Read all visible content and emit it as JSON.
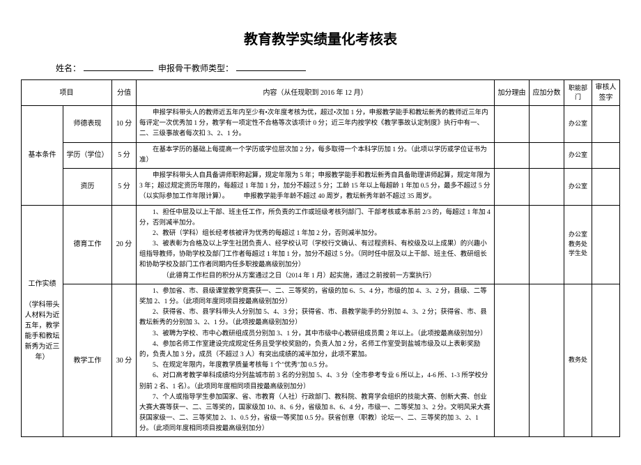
{
  "title": "教育教学实绩量化考核表",
  "header": {
    "name_label": "姓名：",
    "type_label": "申报骨干教师类型："
  },
  "columns": {
    "project": "项目",
    "score": "分值",
    "content": "内容（从任现职到 2016 年 12 月）",
    "reason": "加分理由",
    "add_score": "应加分数",
    "dept": "职能部门",
    "sign": "审核人签字"
  },
  "section1": {
    "name": "基本条件",
    "rows": [
      {
        "item": "师德表现",
        "score": "10 分",
        "content": "　　申报学科带头人的教师近五年内至少有•次年度考核为优，超过•次加 1 分，申报教学能手和教坛新秀的教师近三年内每评定一次优秀加 1 分，教学有一项定性不合格等次该项计 0 分；近三年内按学校《教学事故认定制度》执行中有一、二、三级事故者每次扣 3、2、1 分。",
        "dept": "办公室"
      },
      {
        "item": "学历（学位）",
        "score": "5 分",
        "content": "　　在基本学历的基础上每提高一个学历或学位层次加 2 分，每多取得一个本科学历加 1 分。（此项以学历或学位证书为准）",
        "dept": "办公室"
      },
      {
        "item": "资历",
        "score": "5 分",
        "content": "　　申报学科带头人自具备讲师职称起算，规定年限为 5 年；申报教学能手和教坛新秀自具备助理讲师起算，规定年限为 3 年；超过规定资历年限的，每超过 1 年加 1 分，加分不超过 5 分；工龄 15 年以上每超龄 1 年加 0.5 分，最多不超过 5 分（以实际参加工作年限计算）。\n　　申报教学能手年龄不超过 40 周岁，教坛新秀年龄不超过 35 周岁。",
        "dept": "办公室"
      }
    ]
  },
  "section2": {
    "name": "工作实绩\n\n（学科带头人材料为近五年，教学能手和教坛新秀为近三年）",
    "rows": [
      {
        "item": "德育工作",
        "score": "20 分",
        "content": "　　1、担任中层及以上干部、班主任工作，所负责的工作或班级考核列部门、干部考核或本系前 2/3 的，每超过 1 年加 4 分，否则减半加分。\n　　2、教研（学科）组长经考核被评为优秀的每超过 1 年加 2 分，否则减半加分。\n　　3、被表彰为合格及以上学生社团负责人、经学校认可（学校行文确认、有过程资料、有校级及以上成果）的兴趣小组指导教师，协助学校及部门工作者每超过 1 年加 1 分，加分不超过 5 分。（同时任中层及以上干部、班主任、教研组长和协助学校及部门工作者同期内任多职按最高级别加分）\n　　　　（此德育工作栏目的积分从方案通过之日（2014 年 1 月）起实施，通过之前按前一方案执行）",
        "dept": "办公室教务处学生处"
      },
      {
        "item": "教学工作",
        "score": "30 分",
        "content": "　　1、参加省、市、县级课堂教学竞赛获一、二、三等奖的，省级的加 6、5、4 分，市级的加 4、3、2 分，县级、二等奖加 2、1 分。（此项同年度同项目按最高级别加分）\n　　2、获得省、市、县学科带头人分别加 5、4、3 分；获得省、市、县教学能手的分别加 4、3、2 分；获得省、市、县教坛新秀的分别加 3、2、1 分。（此项按最高级别加分）\n　　3、被聘为学校、市中心教研组成员分别加 3、1 分，其中市级中心教研组成员需 2 年以上。（此项按最高级别加分）\n　　4、参加名师工作室建设完成规定任务且受学校奖励的，负责人加 2 分，名师工作室受到盐城市级及以上表彰奖励的，负责人加 3 分，成员（不超过 3 人）有突出成绩的减半加分，此项不累加。\n　　5、在规定年限内，年度教学质量考核每 1 个\"优秀\"加 0.5 分。\n　　6、对口高考教学单科成绩均分列盐城市前 3 名的分别加 5、4、3 分（全市参考专业 6 所以上，4-6 所、1-3 所学校分别前 2 名、1 名）。（此项同年度相同项目按最高级别加分）\n　　7、个人或指导学生参加国家、省、市教育（人社）行政部门、教科院、教育学会组织的技能大赛、创新大赛、创业大赛大赛等获一、二、三等奖的，国家级加 10、8、6 分，省级加 8、6、4 分，市级一、二等奖加 3、2 分。文明风采大赛获国家级一、二、三等奖加 2、1、0.5 分，省级一等奖加 0.5 分。获省创意（职教）论坛一、二、三等奖的加 3、2、1 分。（此项同年度相同项目按最高级别加分）",
        "dept": "教务处"
      }
    ]
  }
}
